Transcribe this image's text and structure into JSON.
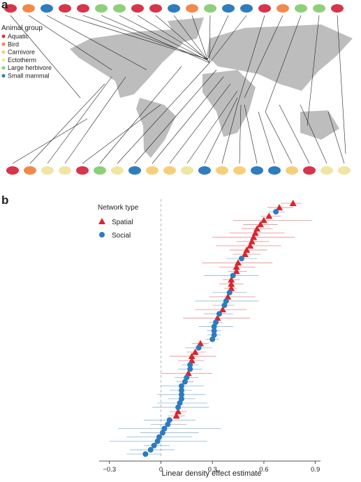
{
  "panel_a": {
    "label": "a",
    "legend_title": "Animal group",
    "groups": [
      {
        "name": "Aquatic",
        "color": "#d6354a"
      },
      {
        "name": "Bird",
        "color": "#f08a4b"
      },
      {
        "name": "Carnivore",
        "color": "#f7cf7a"
      },
      {
        "name": "Ectotherm",
        "color": "#efe6a4"
      },
      {
        "name": "Large herbivore",
        "color": "#8fcf7a"
      },
      {
        "name": "Small mammal",
        "color": "#2f7cbf"
      }
    ]
  },
  "chart_data": {
    "type": "forest",
    "panel_label": "b",
    "legend_title": "Network type",
    "x_label": "Linear density effect estimate",
    "xlim": [
      -0.36,
      0.93
    ],
    "xticks": [
      {
        "value": -0.3,
        "label": "−0.3"
      },
      0,
      0.3,
      0.6,
      0.9
    ],
    "series": [
      {
        "name": "Spatial",
        "color": "#d7262e",
        "marker": "triangle",
        "values": [
          0.77,
          0.69,
          null,
          0.63,
          0.6,
          0.58,
          0.56,
          0.55,
          0.54,
          0.53,
          0.52,
          0.5,
          0.49,
          null,
          0.45,
          0.44,
          0.44,
          null,
          0.41,
          0.41,
          0.41,
          null,
          0.39,
          null,
          null,
          0.36,
          null,
          0.33,
          null,
          null,
          null,
          null,
          null,
          0.23,
          null,
          0.2,
          0.18,
          0.18,
          null,
          null,
          0.16,
          null,
          null,
          null,
          null,
          null,
          null,
          null,
          null,
          0.1,
          0.09,
          null,
          null,
          null,
          null,
          null,
          null,
          null,
          null,
          null
        ],
        "lower": [
          0.7,
          0.62,
          null,
          0.58,
          0.42,
          0.48,
          0.47,
          0.4,
          0.3,
          0.44,
          0.32,
          0.4,
          0.42,
          null,
          0.24,
          0.34,
          0.39,
          null,
          0.36,
          0.34,
          0.37,
          null,
          0.28,
          null,
          null,
          0.2,
          null,
          0.13,
          null,
          null,
          null,
          null,
          null,
          0.18,
          null,
          0.15,
          0.05,
          0.1,
          null,
          null,
          0.0,
          null,
          null,
          null,
          null,
          null,
          null,
          null,
          null,
          0.05,
          0.04,
          null,
          null,
          null,
          null,
          null,
          null,
          null,
          null,
          null
        ],
        "upper": [
          0.82,
          0.77,
          null,
          0.7,
          0.88,
          0.68,
          0.65,
          0.72,
          0.78,
          0.63,
          0.7,
          0.62,
          0.58,
          null,
          0.65,
          0.55,
          0.5,
          null,
          0.46,
          0.48,
          0.44,
          null,
          0.55,
          null,
          null,
          0.5,
          null,
          0.52,
          null,
          null,
          null,
          null,
          null,
          0.28,
          null,
          0.26,
          0.32,
          0.25,
          null,
          null,
          0.3,
          null,
          null,
          null,
          null,
          null,
          null,
          null,
          null,
          0.15,
          0.14,
          null,
          null,
          null,
          null,
          null,
          null,
          null,
          null,
          null
        ]
      },
      {
        "name": "Social",
        "color": "#2e7bbf",
        "marker": "circle",
        "values": [
          null,
          null,
          0.67,
          null,
          null,
          null,
          null,
          null,
          null,
          null,
          null,
          null,
          null,
          0.47,
          null,
          null,
          null,
          0.42,
          null,
          null,
          null,
          0.4,
          null,
          0.38,
          0.37,
          null,
          0.34,
          null,
          0.32,
          0.31,
          0.31,
          0.31,
          0.3,
          null,
          0.22,
          null,
          null,
          null,
          0.17,
          0.17,
          null,
          0.15,
          0.14,
          0.12,
          0.12,
          0.12,
          0.12,
          0.11,
          0.1,
          null,
          null,
          0.05,
          0.04,
          0.02,
          0.01,
          -0.01,
          -0.02,
          -0.04,
          -0.06,
          -0.09
        ],
        "lower": [
          null,
          null,
          0.63,
          null,
          null,
          null,
          null,
          null,
          null,
          null,
          null,
          null,
          null,
          0.38,
          null,
          null,
          null,
          0.25,
          null,
          null,
          null,
          0.3,
          null,
          0.2,
          0.3,
          null,
          0.25,
          null,
          0.28,
          0.22,
          0.27,
          0.27,
          0.26,
          null,
          0.14,
          null,
          null,
          null,
          0.12,
          0.1,
          null,
          0.08,
          0.09,
          0.0,
          0.05,
          -0.02,
          0.04,
          -0.02,
          -0.05,
          null,
          null,
          -0.1,
          -0.06,
          -0.25,
          -0.12,
          -0.2,
          -0.3,
          -0.1,
          -0.18,
          -0.2
        ],
        "upper": [
          null,
          null,
          0.72,
          null,
          null,
          null,
          null,
          null,
          null,
          null,
          null,
          null,
          null,
          0.56,
          null,
          null,
          null,
          0.57,
          null,
          null,
          null,
          0.5,
          null,
          0.57,
          0.43,
          null,
          0.42,
          null,
          0.36,
          0.42,
          0.35,
          0.35,
          0.34,
          null,
          0.3,
          null,
          null,
          null,
          0.22,
          0.24,
          null,
          0.22,
          0.19,
          0.25,
          0.18,
          0.26,
          0.2,
          0.27,
          0.28,
          null,
          null,
          0.2,
          0.15,
          0.35,
          0.22,
          0.18,
          0.27,
          0.05,
          0.08,
          0.0
        ]
      }
    ]
  }
}
